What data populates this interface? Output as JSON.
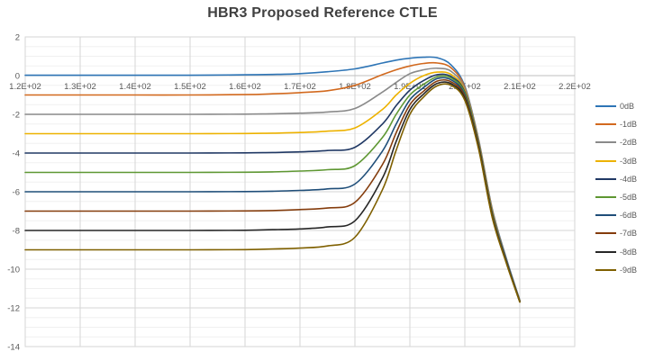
{
  "title": "HBR3 Proposed Reference CTLE",
  "chart_data": {
    "type": "line",
    "title": "HBR3 Proposed Reference CTLE",
    "xlabel": "",
    "ylabel": "",
    "xlim": [
      120,
      220
    ],
    "ylim": [
      -14,
      2
    ],
    "x_tick_labels": [
      "1.2E+02",
      "1.3E+02",
      "1.4E+02",
      "1.5E+02",
      "1.6E+02",
      "1.7E+02",
      "1.8E+02",
      "1.9E+02",
      "2.0E+02",
      "2.1E+02",
      "2.2E+02"
    ],
    "x_ticks": [
      120,
      130,
      140,
      150,
      160,
      170,
      180,
      190,
      200,
      210,
      220
    ],
    "y_ticks": [
      2,
      0,
      -2,
      -4,
      -6,
      -8,
      -10,
      -12,
      -14
    ],
    "y_major_step": 2,
    "y_minor_step": 0.5,
    "grid": "major+minor-horizontal",
    "legend_position": "right",
    "axis_zero_line": 0,
    "x": [
      120,
      130,
      140,
      150,
      160,
      165,
      170,
      175,
      180,
      185,
      187.5,
      190,
      192.5,
      195,
      197.5,
      200,
      202.5,
      205,
      207.5,
      210
    ],
    "series": [
      {
        "name": "0dB",
        "color": "#2E75B6",
        "values": [
          0.02,
          0.02,
          0.02,
          0.02,
          0.04,
          0.06,
          0.1,
          0.2,
          0.35,
          0.65,
          0.8,
          0.9,
          0.95,
          0.92,
          0.55,
          -0.55,
          -3.3,
          -6.9,
          -9.4,
          -11.6
        ]
      },
      {
        "name": "-1dB",
        "color": "#D2691E",
        "values": [
          -1.0,
          -1.0,
          -1.0,
          -1.0,
          -0.98,
          -0.94,
          -0.88,
          -0.78,
          -0.5,
          0.05,
          0.3,
          0.5,
          0.63,
          0.65,
          0.4,
          -0.62,
          -3.35,
          -6.95,
          -9.45,
          -11.62
        ]
      },
      {
        "name": "-2dB",
        "color": "#8A8A8A",
        "values": [
          -2.0,
          -2.0,
          -2.0,
          -2.0,
          -1.99,
          -1.97,
          -1.94,
          -1.88,
          -1.7,
          -0.85,
          -0.35,
          0.1,
          0.3,
          0.38,
          0.22,
          -0.7,
          -3.4,
          -7.0,
          -9.45,
          -11.63
        ]
      },
      {
        "name": "-3dB",
        "color": "#EDB200",
        "values": [
          -3.0,
          -3.0,
          -3.0,
          -3.0,
          -2.99,
          -2.97,
          -2.94,
          -2.87,
          -2.7,
          -1.75,
          -1.0,
          -0.4,
          0.0,
          0.18,
          0.06,
          -0.78,
          -3.45,
          -7.05,
          -9.5,
          -11.64
        ]
      },
      {
        "name": "-4dB",
        "color": "#203864",
        "values": [
          -4.0,
          -4.0,
          -4.0,
          -4.0,
          -3.99,
          -3.97,
          -3.94,
          -3.87,
          -3.7,
          -2.5,
          -1.55,
          -0.75,
          -0.25,
          0.05,
          -0.05,
          -0.85,
          -3.5,
          -7.1,
          -9.5,
          -11.65
        ]
      },
      {
        "name": "-5dB",
        "color": "#5E9732",
        "values": [
          -5.0,
          -5.0,
          -5.0,
          -5.0,
          -4.99,
          -4.97,
          -4.93,
          -4.86,
          -4.65,
          -3.2,
          -2.0,
          -1.0,
          -0.45,
          -0.05,
          -0.12,
          -0.92,
          -3.55,
          -7.15,
          -9.55,
          -11.66
        ]
      },
      {
        "name": "-6dB",
        "color": "#1F4E79",
        "values": [
          -6.0,
          -6.0,
          -6.0,
          -6.0,
          -5.99,
          -5.97,
          -5.93,
          -5.85,
          -5.6,
          -3.9,
          -2.5,
          -1.25,
          -0.62,
          -0.15,
          -0.22,
          -1.0,
          -3.6,
          -7.2,
          -9.55,
          -11.67
        ]
      },
      {
        "name": "-7dB",
        "color": "#843C0C",
        "values": [
          -7.0,
          -7.0,
          -7.0,
          -7.0,
          -6.99,
          -6.97,
          -6.92,
          -6.84,
          -6.55,
          -4.6,
          -2.95,
          -1.5,
          -0.8,
          -0.28,
          -0.32,
          -1.08,
          -3.65,
          -7.25,
          -9.6,
          -11.68
        ]
      },
      {
        "name": "-8dB",
        "color": "#262626",
        "values": [
          -8.0,
          -8.0,
          -8.0,
          -8.0,
          -7.99,
          -7.96,
          -7.92,
          -7.82,
          -7.5,
          -5.3,
          -3.4,
          -1.75,
          -0.95,
          -0.4,
          -0.42,
          -1.18,
          -3.72,
          -7.3,
          -9.62,
          -11.69
        ]
      },
      {
        "name": "-9dB",
        "color": "#7F6000",
        "values": [
          -9.0,
          -9.0,
          -9.0,
          -9.0,
          -8.99,
          -8.96,
          -8.91,
          -8.8,
          -8.35,
          -5.9,
          -3.85,
          -2.0,
          -1.1,
          -0.52,
          -0.5,
          -1.28,
          -3.8,
          -7.35,
          -9.65,
          -11.7
        ]
      }
    ],
    "colors": {
      "grid_major": "#D6D6D6",
      "grid_minor": "#F0F0F0",
      "plot_border": "#D6D6D6",
      "zero_axis": "#BFBFBF",
      "tick_text": "#595959",
      "title_text": "#404040"
    }
  }
}
